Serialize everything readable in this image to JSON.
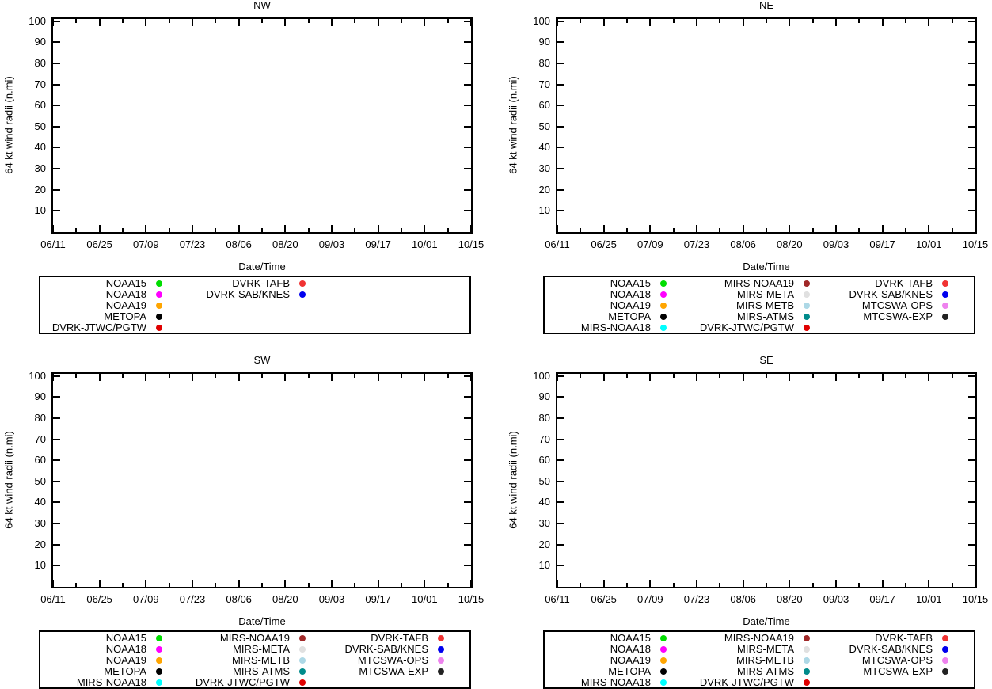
{
  "figure": {
    "background": "#ffffff"
  },
  "axis": {
    "ylabel": "64 kt wind radii (n.mi)",
    "xlabel": "Date/Time",
    "yticks": [
      "100",
      "90",
      "80",
      "70",
      "60",
      "50",
      "40",
      "30",
      "20",
      "10"
    ],
    "xticks": [
      "06/11",
      "06/25",
      "07/09",
      "07/23",
      "08/06",
      "08/20",
      "09/03",
      "09/17",
      "10/01",
      "10/15"
    ]
  },
  "series_colors": {
    "NOAA15": "#00dd00",
    "NOAA18": "#ff00ff",
    "NOAA19": "#ffa500",
    "METOPA": "#000000",
    "MIRS-NOAA18": "#00ffff",
    "MIRS-NOAA19": "#a02828",
    "MIRS-META": "#e0e0e0",
    "MIRS-METB": "#add8e6",
    "MIRS-ATMS": "#008b8b",
    "DVRK-JTWC/PGTW": "#e00000",
    "DVRK-TAFB": "#f03232",
    "DVRK-SAB/KNES": "#0000ee",
    "MTCSWA-OPS": "#ee82ee",
    "MTCSWA-EXP": "#222222"
  },
  "panels": [
    {
      "id": "nw",
      "title": "NW",
      "legend_columns": [
        [
          "NOAA15",
          "NOAA18",
          "NOAA19",
          "METOPA",
          "DVRK-JTWC/PGTW"
        ],
        [
          "DVRK-TAFB",
          "DVRK-SAB/KNES"
        ]
      ]
    },
    {
      "id": "ne",
      "title": "NE",
      "legend_columns": [
        [
          "NOAA15",
          "NOAA18",
          "NOAA19",
          "METOPA",
          "MIRS-NOAA18"
        ],
        [
          "MIRS-NOAA19",
          "MIRS-META",
          "MIRS-METB",
          "MIRS-ATMS",
          "DVRK-JTWC/PGTW"
        ],
        [
          "DVRK-TAFB",
          "DVRK-SAB/KNES",
          "MTCSWA-OPS",
          "MTCSWA-EXP"
        ]
      ]
    },
    {
      "id": "sw",
      "title": "SW",
      "legend_columns": [
        [
          "NOAA15",
          "NOAA18",
          "NOAA19",
          "METOPA",
          "MIRS-NOAA18"
        ],
        [
          "MIRS-NOAA19",
          "MIRS-META",
          "MIRS-METB",
          "MIRS-ATMS",
          "DVRK-JTWC/PGTW"
        ],
        [
          "DVRK-TAFB",
          "DVRK-SAB/KNES",
          "MTCSWA-OPS",
          "MTCSWA-EXP"
        ]
      ]
    },
    {
      "id": "se",
      "title": "SE",
      "legend_columns": [
        [
          "NOAA15",
          "NOAA18",
          "NOAA19",
          "METOPA",
          "MIRS-NOAA18"
        ],
        [
          "MIRS-NOAA19",
          "MIRS-META",
          "MIRS-METB",
          "MIRS-ATMS",
          "DVRK-JTWC/PGTW"
        ],
        [
          "DVRK-TAFB",
          "DVRK-SAB/KNES",
          "MTCSWA-OPS",
          "MTCSWA-EXP"
        ]
      ]
    }
  ],
  "chart_data": [
    {
      "type": "scatter",
      "title": "NW",
      "xlabel": "Date/Time",
      "ylabel": "64 kt wind radii (n.mi)",
      "x_tick_labels": [
        "06/11",
        "06/25",
        "07/09",
        "07/23",
        "08/06",
        "08/20",
        "09/03",
        "09/17",
        "10/01",
        "10/15"
      ],
      "y_tick_values": [
        10,
        20,
        30,
        40,
        50,
        60,
        70,
        80,
        90,
        100
      ],
      "ylim": [
        0,
        100
      ],
      "grid": false,
      "legend_position": "boxed, below plot",
      "series": [
        {
          "name": "NOAA15",
          "color": "#00dd00",
          "points": []
        },
        {
          "name": "NOAA18",
          "color": "#ff00ff",
          "points": []
        },
        {
          "name": "NOAA19",
          "color": "#ffa500",
          "points": []
        },
        {
          "name": "METOPA",
          "color": "#000000",
          "points": []
        },
        {
          "name": "DVRK-JTWC/PGTW",
          "color": "#e00000",
          "points": []
        },
        {
          "name": "DVRK-TAFB",
          "color": "#f03232",
          "points": []
        },
        {
          "name": "DVRK-SAB/KNES",
          "color": "#0000ee",
          "points": []
        }
      ]
    },
    {
      "type": "scatter",
      "title": "NE",
      "xlabel": "Date/Time",
      "ylabel": "64 kt wind radii (n.mi)",
      "x_tick_labels": [
        "06/11",
        "06/25",
        "07/09",
        "07/23",
        "08/06",
        "08/20",
        "09/03",
        "09/17",
        "10/01",
        "10/15"
      ],
      "y_tick_values": [
        10,
        20,
        30,
        40,
        50,
        60,
        70,
        80,
        90,
        100
      ],
      "ylim": [
        0,
        100
      ],
      "grid": false,
      "legend_position": "boxed, below plot",
      "series": [
        {
          "name": "NOAA15",
          "color": "#00dd00",
          "points": []
        },
        {
          "name": "NOAA18",
          "color": "#ff00ff",
          "points": []
        },
        {
          "name": "NOAA19",
          "color": "#ffa500",
          "points": []
        },
        {
          "name": "METOPA",
          "color": "#000000",
          "points": []
        },
        {
          "name": "MIRS-NOAA18",
          "color": "#00ffff",
          "points": []
        },
        {
          "name": "MIRS-NOAA19",
          "color": "#a02828",
          "points": []
        },
        {
          "name": "MIRS-META",
          "color": "#e0e0e0",
          "points": []
        },
        {
          "name": "MIRS-METB",
          "color": "#add8e6",
          "points": []
        },
        {
          "name": "MIRS-ATMS",
          "color": "#008b8b",
          "points": []
        },
        {
          "name": "DVRK-JTWC/PGTW",
          "color": "#e00000",
          "points": []
        },
        {
          "name": "DVRK-TAFB",
          "color": "#f03232",
          "points": []
        },
        {
          "name": "DVRK-SAB/KNES",
          "color": "#0000ee",
          "points": []
        },
        {
          "name": "MTCSWA-OPS",
          "color": "#ee82ee",
          "points": []
        },
        {
          "name": "MTCSWA-EXP",
          "color": "#222222",
          "points": []
        }
      ]
    },
    {
      "type": "scatter",
      "title": "SW",
      "xlabel": "Date/Time",
      "ylabel": "64 kt wind radii (n.mi)",
      "x_tick_labels": [
        "06/11",
        "06/25",
        "07/09",
        "07/23",
        "08/06",
        "08/20",
        "09/03",
        "09/17",
        "10/01",
        "10/15"
      ],
      "y_tick_values": [
        10,
        20,
        30,
        40,
        50,
        60,
        70,
        80,
        90,
        100
      ],
      "ylim": [
        0,
        100
      ],
      "grid": false,
      "legend_position": "boxed, below plot",
      "series": [
        {
          "name": "NOAA15",
          "color": "#00dd00",
          "points": []
        },
        {
          "name": "NOAA18",
          "color": "#ff00ff",
          "points": []
        },
        {
          "name": "NOAA19",
          "color": "#ffa500",
          "points": []
        },
        {
          "name": "METOPA",
          "color": "#000000",
          "points": []
        },
        {
          "name": "MIRS-NOAA18",
          "color": "#00ffff",
          "points": []
        },
        {
          "name": "MIRS-NOAA19",
          "color": "#a02828",
          "points": []
        },
        {
          "name": "MIRS-META",
          "color": "#e0e0e0",
          "points": []
        },
        {
          "name": "MIRS-METB",
          "color": "#add8e6",
          "points": []
        },
        {
          "name": "MIRS-ATMS",
          "color": "#008b8b",
          "points": []
        },
        {
          "name": "DVRK-JTWC/PGTW",
          "color": "#e00000",
          "points": []
        },
        {
          "name": "DVRK-TAFB",
          "color": "#f03232",
          "points": []
        },
        {
          "name": "DVRK-SAB/KNES",
          "color": "#0000ee",
          "points": []
        },
        {
          "name": "MTCSWA-OPS",
          "color": "#ee82ee",
          "points": []
        },
        {
          "name": "MTCSWA-EXP",
          "color": "#222222",
          "points": []
        }
      ]
    },
    {
      "type": "scatter",
      "title": "SE",
      "xlabel": "Date/Time",
      "ylabel": "64 kt wind radii (n.mi)",
      "x_tick_labels": [
        "06/11",
        "06/25",
        "07/09",
        "07/23",
        "08/06",
        "08/20",
        "09/03",
        "09/17",
        "10/01",
        "10/15"
      ],
      "y_tick_values": [
        10,
        20,
        30,
        40,
        50,
        60,
        70,
        80,
        90,
        100
      ],
      "ylim": [
        0,
        100
      ],
      "grid": false,
      "legend_position": "boxed, below plot",
      "series": [
        {
          "name": "NOAA15",
          "color": "#00dd00",
          "points": []
        },
        {
          "name": "NOAA18",
          "color": "#ff00ff",
          "points": []
        },
        {
          "name": "NOAA19",
          "color": "#ffa500",
          "points": []
        },
        {
          "name": "METOPA",
          "color": "#000000",
          "points": []
        },
        {
          "name": "MIRS-NOAA18",
          "color": "#00ffff",
          "points": []
        },
        {
          "name": "MIRS-NOAA19",
          "color": "#a02828",
          "points": []
        },
        {
          "name": "MIRS-META",
          "color": "#e0e0e0",
          "points": []
        },
        {
          "name": "MIRS-METB",
          "color": "#add8e6",
          "points": []
        },
        {
          "name": "MIRS-ATMS",
          "color": "#008b8b",
          "points": []
        },
        {
          "name": "DVRK-JTWC/PGTW",
          "color": "#e00000",
          "points": []
        },
        {
          "name": "DVRK-TAFB",
          "color": "#f03232",
          "points": []
        },
        {
          "name": "DVRK-SAB/KNES",
          "color": "#0000ee",
          "points": []
        },
        {
          "name": "MTCSWA-OPS",
          "color": "#ee82ee",
          "points": []
        },
        {
          "name": "MTCSWA-EXP",
          "color": "#222222",
          "points": []
        }
      ]
    }
  ]
}
